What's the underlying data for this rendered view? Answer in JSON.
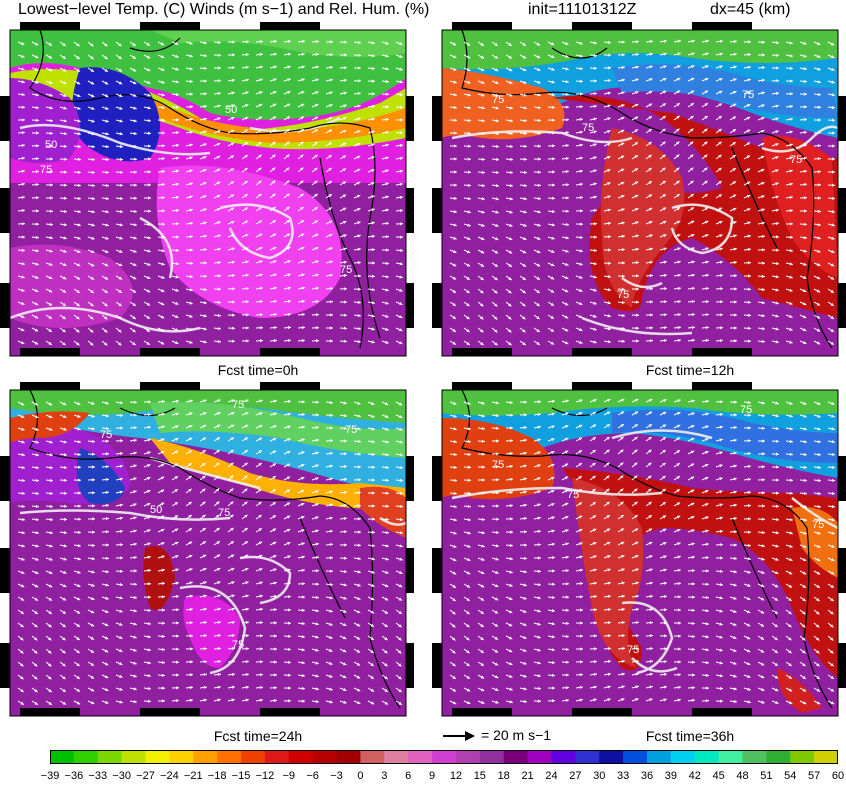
{
  "header": {
    "title": "Lowest−level Temp. (C) Winds (m s−1) and Rel. Hum. (%)",
    "init": "init=11101312Z",
    "dx": "dx=45 (km)"
  },
  "panels": [
    {
      "id": "p0",
      "caption": "Fcst time=0h",
      "contour_labels": [
        "50",
        "75",
        "75",
        "50"
      ]
    },
    {
      "id": "p12",
      "caption": "Fcst time=12h",
      "contour_labels": [
        "75",
        "75",
        "75",
        "75",
        "75"
      ]
    },
    {
      "id": "p24",
      "caption": "Fcst time=24h",
      "contour_labels": [
        "75",
        "75",
        "50",
        "75",
        "75",
        "75"
      ]
    },
    {
      "id": "p36",
      "caption": "Fcst time=36h",
      "contour_labels": [
        "75",
        "75",
        "75",
        "75",
        "75"
      ]
    }
  ],
  "reference_vector": {
    "label": "= 20 m s−1"
  },
  "colorbar": {
    "ticks": [
      "−39",
      "−36",
      "−33",
      "−30",
      "−27",
      "−24",
      "−21",
      "−18",
      "−15",
      "−12",
      "−9",
      "−6",
      "−3",
      "0",
      "3",
      "6",
      "9",
      "12",
      "15",
      "18",
      "21",
      "24",
      "27",
      "30",
      "33",
      "36",
      "39",
      "42",
      "45",
      "48",
      "51",
      "54",
      "57",
      "60"
    ],
    "colors": [
      "#00c000",
      "#30d000",
      "#7ad800",
      "#c0e000",
      "#f0f000",
      "#ffd000",
      "#ffa000",
      "#ff7000",
      "#f04000",
      "#e01818",
      "#d00000",
      "#b80000",
      "#a00000",
      "#d06060",
      "#e080a0",
      "#e060c0",
      "#d040d0",
      "#b040b0",
      "#9030a0",
      "#7a007a",
      "#a000c0",
      "#6000e0",
      "#3030d0",
      "#1010a0",
      "#0050e0",
      "#00a0e0",
      "#00d0f0",
      "#00e8c0",
      "#40f0a0",
      "#50c060",
      "#30b030",
      "#80c800",
      "#d0d000"
    ]
  }
}
